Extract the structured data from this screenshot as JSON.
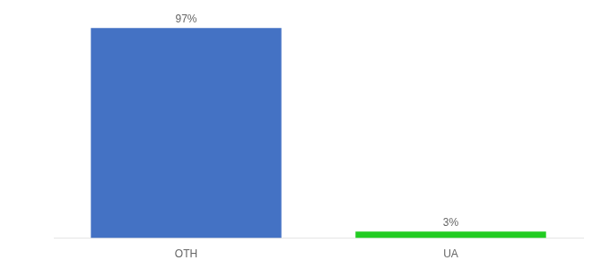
{
  "chart_data": {
    "type": "bar",
    "categories": [
      "OTH",
      "UA"
    ],
    "values": [
      97,
      3
    ],
    "value_labels": [
      "97%",
      "3%"
    ],
    "colors": [
      "#4472c4",
      "#22cc22"
    ],
    "ylim": [
      0,
      100
    ],
    "grid": false,
    "data_labels": true,
    "tick_labels": "x"
  }
}
